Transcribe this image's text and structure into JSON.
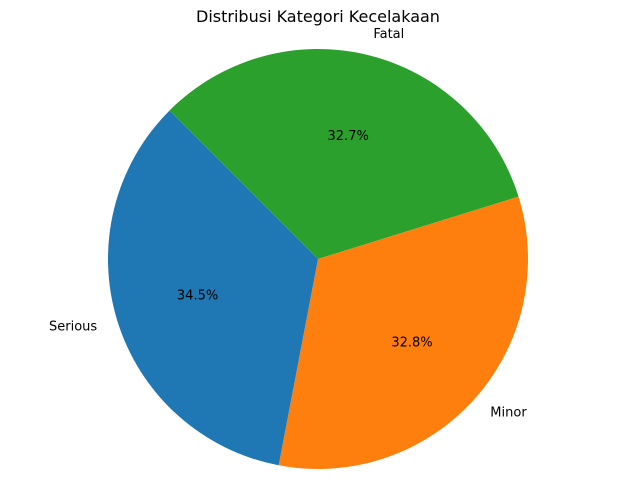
{
  "chart_data": {
    "type": "pie",
    "title": "Distribusi Kategori Kecelakaan",
    "categories": [
      "Fatal",
      "Minor",
      "Serious"
    ],
    "values": [
      32.7,
      32.8,
      34.5
    ],
    "percent_labels": [
      "32.7%",
      "32.8%",
      "34.5%"
    ],
    "colors": [
      "#2ca02c",
      "#ff7f0e",
      "#1f77b4"
    ],
    "start_angle_deg": 135,
    "direction": "clockwise",
    "legend": "none"
  }
}
